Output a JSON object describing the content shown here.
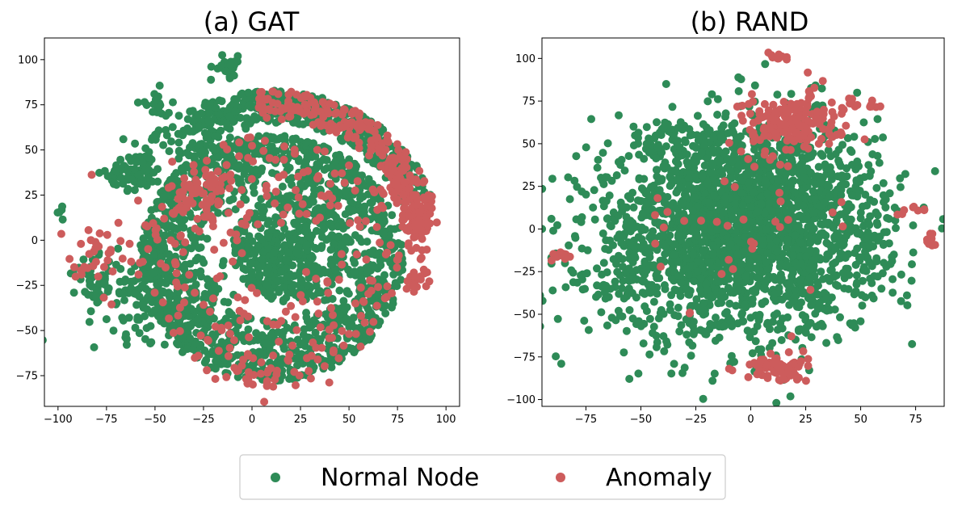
{
  "colors": {
    "normal": "#2e8b57",
    "anomaly": "#cd5c5c",
    "axis": "#000000",
    "legend_border": "#cccccc"
  },
  "legend": {
    "items": [
      {
        "label": "Normal Node",
        "color": "#2e8b57"
      },
      {
        "label": "Anomaly",
        "color": "#cd5c5c"
      }
    ]
  },
  "chart_data": [
    {
      "type": "scatter",
      "title": "(a) GAT",
      "xlabel": "",
      "ylabel": "",
      "xlim": [
        -107,
        107
      ],
      "ylim": [
        -92,
        112
      ],
      "xticks": [
        -100,
        -75,
        -50,
        -25,
        0,
        25,
        50,
        75,
        100
      ],
      "yticks": [
        -75,
        -50,
        -25,
        0,
        25,
        50,
        75,
        100
      ],
      "series": [
        {
          "name": "Normal Node",
          "clusters": [
            {
              "kind": "ring",
              "cx": 10,
              "cy": -10,
              "r": [
                32,
                68
              ],
              "n": 1300,
              "spread": 1
            },
            {
              "kind": "ring",
              "cx": 20,
              "cy": -5,
              "r": [
                0,
                30
              ],
              "n": 450,
              "spread": 1
            },
            {
              "kind": "arc",
              "cx": 10,
              "cy": -5,
              "r": [
                70,
                88
              ],
              "angles": [
                20,
                120
              ],
              "n": 450
            },
            {
              "kind": "blob",
              "cx": -60,
              "cy": 38,
              "sx": 7,
              "sy": 5,
              "n": 70
            },
            {
              "kind": "blob",
              "cx": -13,
              "cy": 96,
              "sx": 4,
              "sy": 3,
              "n": 25
            },
            {
              "kind": "blob",
              "cx": -50,
              "cy": -30,
              "sx": 18,
              "sy": 12,
              "n": 150
            },
            {
              "kind": "blob",
              "cx": -80,
              "cy": -22,
              "sx": 6,
              "sy": 6,
              "n": 40
            },
            {
              "kind": "blob",
              "cx": -30,
              "cy": 55,
              "sx": 15,
              "sy": 10,
              "n": 100
            },
            {
              "kind": "blob",
              "cx": -99,
              "cy": 16,
              "sx": 1.5,
              "sy": 2,
              "n": 5
            },
            {
              "kind": "blob",
              "cx": -50,
              "cy": 75,
              "sx": 4,
              "sy": 4,
              "n": 15
            }
          ]
        },
        {
          "name": "Anomaly",
          "clusters": [
            {
              "kind": "arc",
              "cx": 10,
              "cy": -5,
              "r": [
                72,
                88
              ],
              "angles": [
                15,
                95
              ],
              "n": 220
            },
            {
              "kind": "blob",
              "cx": 85,
              "cy": 10,
              "sx": 4,
              "sy": 8,
              "n": 70
            },
            {
              "kind": "blob",
              "cx": 85,
              "cy": -20,
              "sx": 3,
              "sy": 4,
              "n": 20
            },
            {
              "kind": "blob",
              "cx": 75,
              "cy": 28,
              "sx": 4,
              "sy": 6,
              "n": 30
            },
            {
              "kind": "ring",
              "cx": 10,
              "cy": -10,
              "r": [
                15,
                68
              ],
              "n": 230,
              "spread": 1
            },
            {
              "kind": "blob",
              "cx": -25,
              "cy": 25,
              "sx": 8,
              "sy": 10,
              "n": 60
            },
            {
              "kind": "blob",
              "cx": -60,
              "cy": -5,
              "sx": 20,
              "sy": 15,
              "n": 40
            },
            {
              "kind": "blob",
              "cx": -80,
              "cy": -10,
              "sx": 5,
              "sy": 6,
              "n": 15
            },
            {
              "kind": "blob",
              "cx": 5,
              "cy": -75,
              "sx": 15,
              "sy": 5,
              "n": 30
            }
          ]
        }
      ]
    },
    {
      "type": "scatter",
      "title": "(b) RAND",
      "xlabel": "",
      "ylabel": "",
      "xlim": [
        -95,
        88
      ],
      "ylim": [
        -104,
        112
      ],
      "xticks": [
        -75,
        -50,
        -25,
        0,
        25,
        50,
        75
      ],
      "yticks": [
        -100,
        -75,
        -50,
        -25,
        0,
        25,
        50,
        75,
        100
      ],
      "series": [
        {
          "name": "Normal Node",
          "clusters": [
            {
              "kind": "blob",
              "cx": -10,
              "cy": -5,
              "sx": 32,
              "sy": 30,
              "n": 1800
            },
            {
              "kind": "blob",
              "cx": 10,
              "cy": 20,
              "sx": 25,
              "sy": 25,
              "n": 600
            },
            {
              "kind": "blob",
              "cx": -45,
              "cy": 47,
              "sx": 3,
              "sy": 2,
              "n": 15
            },
            {
              "kind": "blob",
              "cx": 55,
              "cy": -10,
              "sx": 5,
              "sy": 10,
              "n": 40
            },
            {
              "kind": "blob",
              "cx": -60,
              "cy": -35,
              "sx": 5,
              "sy": 5,
              "n": 20
            },
            {
              "kind": "blob",
              "cx": 30,
              "cy": -40,
              "sx": 8,
              "sy": 6,
              "n": 30
            },
            {
              "kind": "blob",
              "cx": -30,
              "cy": 55,
              "sx": 8,
              "sy": 5,
              "n": 30
            }
          ]
        },
        {
          "name": "Anomaly",
          "clusters": [
            {
              "kind": "blob",
              "cx": 18,
              "cy": 62,
              "sx": 11,
              "sy": 9,
              "n": 180
            },
            {
              "kind": "blob",
              "cx": 12,
              "cy": -82,
              "sx": 7,
              "sy": 4,
              "n": 70
            },
            {
              "kind": "blob",
              "cx": 13,
              "cy": 101,
              "sx": 2,
              "sy": 1.2,
              "n": 12
            },
            {
              "kind": "blob",
              "cx": -86,
              "cy": -16,
              "sx": 2,
              "sy": 2,
              "n": 10
            },
            {
              "kind": "blob",
              "cx": 82,
              "cy": -7,
              "sx": 1,
              "sy": 4,
              "n": 12
            },
            {
              "kind": "blob",
              "cx": 52,
              "cy": 73,
              "sx": 4,
              "sy": 1.5,
              "n": 12
            },
            {
              "kind": "blob",
              "cx": 75,
              "cy": 12,
              "sx": 4,
              "sy": 2,
              "n": 8
            },
            {
              "kind": "blob",
              "cx": -5,
              "cy": 10,
              "sx": 30,
              "sy": 30,
              "n": 40
            }
          ]
        }
      ]
    }
  ]
}
